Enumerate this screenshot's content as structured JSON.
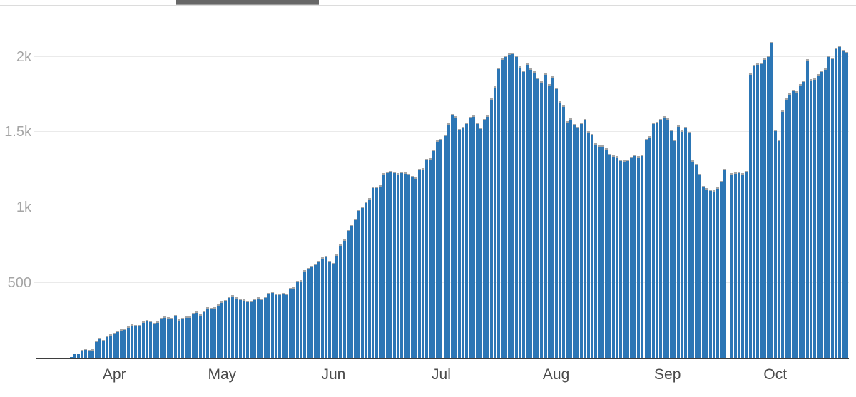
{
  "top_bar": {
    "tab_indicator": "selected-tab-underline"
  },
  "colors": {
    "bar": "#2c76b5",
    "bar_cap": "#a5a5a5",
    "grid": "#eaeaea",
    "axis": "#3e3e3e",
    "y_tick_text": "#a5a5a5",
    "month_text": "#4b4b4b",
    "top_tab": "#676767",
    "top_line": "#dcdcdc"
  },
  "chart_data": {
    "type": "bar",
    "title": "",
    "xlabel": "",
    "ylabel": "",
    "grid": "horizontal",
    "ylim": [
      0,
      2370
    ],
    "y_ticks": [
      {
        "value": 500,
        "label": "500"
      },
      {
        "value": 1000,
        "label": "1k"
      },
      {
        "value": 1500,
        "label": "1.5k"
      },
      {
        "value": 2000,
        "label": "2k"
      }
    ],
    "x_month_ticks": [
      {
        "label": "Apr",
        "index": 21
      },
      {
        "label": "May",
        "index": 51
      },
      {
        "label": "Jun",
        "index": 82
      },
      {
        "label": "Jul",
        "index": 112
      },
      {
        "label": "Aug",
        "index": 144
      },
      {
        "label": "Sep",
        "index": 175
      },
      {
        "label": "Oct",
        "index": 205
      }
    ],
    "values": [
      1,
      1,
      2,
      2,
      3,
      3,
      4,
      5,
      6,
      8,
      35,
      28,
      55,
      65,
      55,
      62,
      120,
      135,
      122,
      150,
      163,
      170,
      182,
      193,
      200,
      214,
      228,
      222,
      220,
      245,
      255,
      250,
      237,
      247,
      270,
      280,
      276,
      271,
      286,
      262,
      270,
      278,
      280,
      302,
      310,
      295,
      316,
      338,
      334,
      340,
      358,
      380,
      388,
      410,
      420,
      408,
      396,
      392,
      382,
      383,
      396,
      406,
      397,
      410,
      434,
      443,
      428,
      430,
      434,
      428,
      467,
      472,
      514,
      520,
      585,
      600,
      612,
      628,
      646,
      670,
      680,
      645,
      632,
      690,
      758,
      788,
      854,
      890,
      928,
      985,
      1008,
      1040,
      1065,
      1140,
      1136,
      1150,
      1230,
      1236,
      1240,
      1236,
      1230,
      1236,
      1232,
      1225,
      1207,
      1198,
      1254,
      1263,
      1322,
      1325,
      1386,
      1443,
      1453,
      1481,
      1560,
      1620,
      1605,
      1520,
      1535,
      1565,
      1600,
      1610,
      1565,
      1528,
      1585,
      1612,
      1725,
      1802,
      1928,
      1990,
      2008,
      2019,
      2024,
      2005,
      1938,
      1910,
      1956,
      1920,
      1905,
      1862,
      1835,
      1890,
      1816,
      1868,
      1797,
      1703,
      1678,
      1575,
      1590,
      1552,
      1533,
      1561,
      1589,
      1505,
      1486,
      1425,
      1414,
      1410,
      1395,
      1354,
      1345,
      1340,
      1316,
      1311,
      1316,
      1335,
      1349,
      1340,
      1350,
      1453,
      1472,
      1561,
      1570,
      1585,
      1604,
      1590,
      1514,
      1450,
      1545,
      1510,
      1535,
      1500,
      1311,
      1288,
      1222,
      1142,
      1128,
      1118,
      1113,
      1132,
      1176,
      1255,
      0,
      1227,
      1232,
      1236,
      1230,
      1240,
      1890,
      1945,
      1957,
      1962,
      1990,
      2009,
      2099,
      1514,
      1448,
      1642,
      1726,
      1759,
      1779,
      1769,
      1820,
      1844,
      1985,
      1849,
      1858,
      1886,
      1906,
      1920,
      2009,
      1991,
      2057,
      2071,
      2047,
      2033
    ]
  }
}
